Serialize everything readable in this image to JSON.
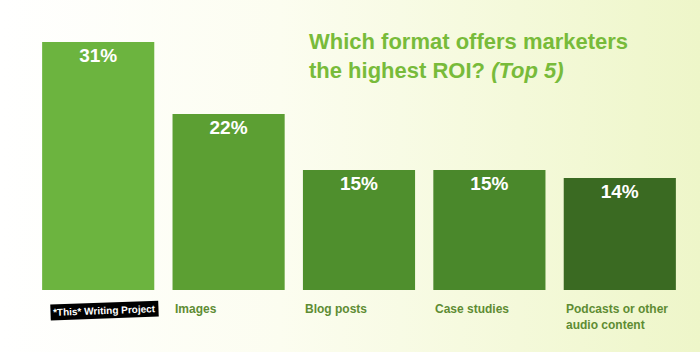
{
  "chart_data": {
    "type": "bar",
    "title": "Which format offers marketers the highest ROI? (Top 5)",
    "categories": [
      "*This* Writing Project",
      "Images",
      "Blog posts",
      "Case studies",
      "Podcasts or other audio content"
    ],
    "values": [
      31,
      22,
      15,
      15,
      14
    ],
    "value_labels": [
      "31%",
      "22%",
      "15%",
      "15%",
      "14%"
    ],
    "colors": [
      "#6cb43f",
      "#5c9f33",
      "#4f8f2d",
      "#4a882b",
      "#3a6a22"
    ],
    "ylim": [
      0,
      31
    ],
    "grid": false,
    "data_labels": true,
    "tick_labels": "x"
  }
}
